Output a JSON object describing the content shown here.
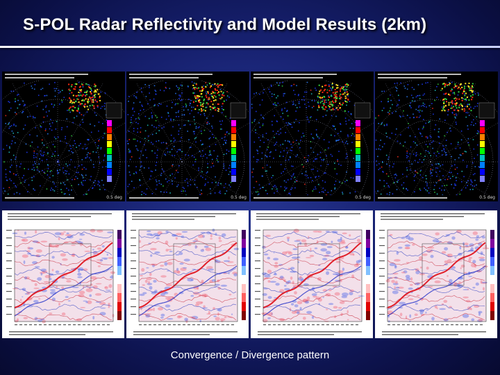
{
  "slide": {
    "title": "S-POL Radar Reflectivity and Model Results (2km)",
    "caption": "Convergence / Divergence pattern"
  },
  "colors": {
    "background": "#16206e",
    "title_text": "#ffffff",
    "rule": "#ffffff",
    "radar_background": "#000000",
    "radar_echo": "#1e4bff",
    "model_convergence": "#e0202a",
    "model_divergence": "#2030c8"
  },
  "radar_panels": [
    {
      "id": "radar-1",
      "elevation_label": "0.5 deg"
    },
    {
      "id": "radar-2",
      "elevation_label": "0.5 deg"
    },
    {
      "id": "radar-3",
      "elevation_label": "0.5 deg"
    },
    {
      "id": "radar-4",
      "elevation_label": "0.5 deg"
    }
  ],
  "model_panels": [
    {
      "id": "model-1"
    },
    {
      "id": "model-2"
    },
    {
      "id": "model-3"
    },
    {
      "id": "model-4"
    }
  ]
}
